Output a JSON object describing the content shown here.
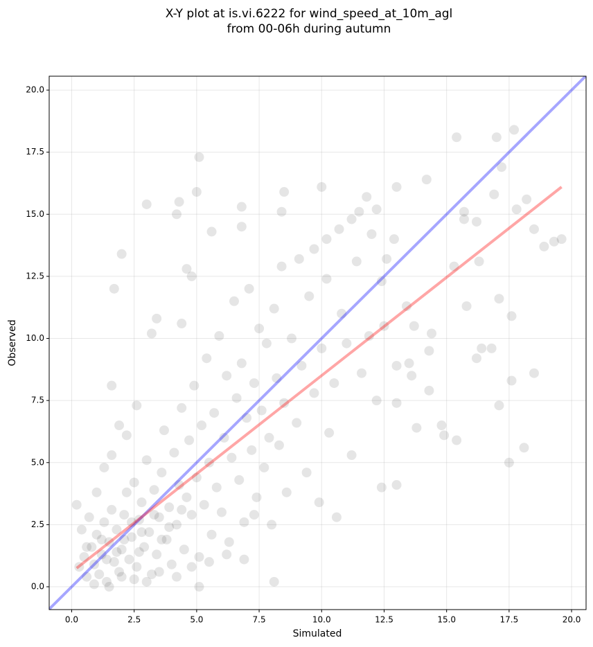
{
  "chart_data": {
    "type": "scatter",
    "title": "X-Y plot at is.vi.6222 for wind_speed_at_10m_agl",
    "subtitle": "from 00-06h during autumn",
    "x_label": "Simulated",
    "y_label": "Observed",
    "xlim": [
      -0.9,
      20.58
    ],
    "ylim": [
      -0.92,
      20.56
    ],
    "xticks": [
      {
        "value": 0,
        "label": "0.0"
      },
      {
        "value": 2.5,
        "label": "2.5"
      },
      {
        "value": 5,
        "label": "5.0"
      },
      {
        "value": 7.5,
        "label": "7.5"
      },
      {
        "value": 10,
        "label": "10.0"
      },
      {
        "value": 12.5,
        "label": "12.5"
      },
      {
        "value": 15,
        "label": "15.0"
      },
      {
        "value": 17.5,
        "label": "17.5"
      },
      {
        "value": 20,
        "label": "20.0"
      }
    ],
    "yticks": [
      {
        "value": 0,
        "label": "0.0"
      },
      {
        "value": 2.5,
        "label": "2.5"
      },
      {
        "value": 5,
        "label": "5.0"
      },
      {
        "value": 7.5,
        "label": "7.5"
      },
      {
        "value": 10,
        "label": "10.0"
      },
      {
        "value": 12.5,
        "label": "12.5"
      },
      {
        "value": 15,
        "label": "15.0"
      },
      {
        "value": 17.5,
        "label": "17.5"
      },
      {
        "value": 20,
        "label": "20.0"
      }
    ],
    "grid": true,
    "points": {
      "color": "#000000",
      "alpha": 0.1,
      "x": [
        0.3,
        0.5,
        0.6,
        0.8,
        0.9,
        1.0,
        1.1,
        1.2,
        1.3,
        1.4,
        1.5,
        1.6,
        1.7,
        1.8,
        1.9,
        2.0,
        2.1,
        2.2,
        2.3,
        2.4,
        2.5,
        2.6,
        2.7,
        2.8,
        2.9,
        3.0,
        3.1,
        3.2,
        3.3,
        3.4,
        3.5,
        3.6,
        3.7,
        3.8,
        3.9,
        4.0,
        4.1,
        4.2,
        4.3,
        4.4,
        4.5,
        4.6,
        4.7,
        4.8,
        4.9,
        5.0,
        5.1,
        5.2,
        5.3,
        5.4,
        5.5,
        5.6,
        5.7,
        5.8,
        5.9,
        6.0,
        6.1,
        6.2,
        6.3,
        6.4,
        6.5,
        6.6,
        6.7,
        6.8,
        6.9,
        7.0,
        7.1,
        7.2,
        7.3,
        7.4,
        7.5,
        7.6,
        7.7,
        7.8,
        7.9,
        8.0,
        8.1,
        8.2,
        8.3,
        8.4,
        8.5,
        8.6,
        8.8,
        9.0,
        9.1,
        9.2,
        9.4,
        9.5,
        9.7,
        9.9,
        10.0,
        10.2,
        10.3,
        10.5,
        10.6,
        10.8,
        11.0,
        11.2,
        11.4,
        11.6,
        11.9,
        12.2,
        12.5,
        0.2,
        0.4,
        0.7,
        1.0,
        1.3,
        1.6,
        1.9,
        2.2,
        2.6,
        0.9,
        1.5,
        2.0,
        2.5,
        3.0,
        3.5,
        4.2,
        4.8,
        5.5,
        6.2,
        6.9,
        7.3,
        1.2,
        1.8,
        2.4,
        2.8,
        3.3,
        3.9,
        4.4,
        0.6,
        1.4,
        2.1,
        2.7,
        3.6,
        2.0,
        1.7,
        3.0,
        5.1,
        4.2,
        4.3,
        5.0,
        15.4,
        17.0,
        17.7,
        17.2,
        14.2,
        13.0,
        10.0,
        8.5,
        18.5,
        17.6,
        18.1,
        17.5,
        17.1,
        15.4,
        14.9,
        14.8,
        13.0,
        12.4,
        8.1,
        5.1,
        19.6,
        19.3,
        18.9,
        18.5,
        18.2,
        17.8,
        16.9,
        16.2,
        15.7,
        15.7,
        16.3,
        15.3,
        15.8,
        17.1,
        17.6,
        16.4,
        16.8,
        16.2,
        14.3,
        13.8,
        13.0,
        14.3,
        14.4,
        13.7,
        13.4,
        13.6,
        13.0,
        13.5,
        12.6,
        12.9,
        12.4,
        12.0,
        11.5,
        11.8,
        12.2,
        11.2,
        10.2,
        10.7,
        9.7,
        8.4,
        6.8,
        6.8,
        5.6,
        4.6,
        4.8,
        4.4,
        3.4,
        3.2,
        1.6
      ],
      "values": [
        0.8,
        1.2,
        0.4,
        1.6,
        0.9,
        2.1,
        0.5,
        1.3,
        2.6,
        0.2,
        1.8,
        3.1,
        1.0,
        2.3,
        0.6,
        1.5,
        2.9,
        3.8,
        1.1,
        2.0,
        4.2,
        0.8,
        2.7,
        3.4,
        1.6,
        5.1,
        2.2,
        0.5,
        3.9,
        1.3,
        2.8,
        4.6,
        6.3,
        1.9,
        3.2,
        0.9,
        5.4,
        2.5,
        4.1,
        7.2,
        1.5,
        3.6,
        5.9,
        2.9,
        8.1,
        4.4,
        1.2,
        6.5,
        3.3,
        9.2,
        5.0,
        2.1,
        7.0,
        4.0,
        10.1,
        3.0,
        6.0,
        8.5,
        1.8,
        5.2,
        11.5,
        7.6,
        4.3,
        9.0,
        2.6,
        6.8,
        12.0,
        5.5,
        8.2,
        3.6,
        10.4,
        7.1,
        4.8,
        9.8,
        6.0,
        2.5,
        11.2,
        8.4,
        5.7,
        12.9,
        7.4,
        3.8,
        10.0,
        6.6,
        13.2,
        8.9,
        4.6,
        11.7,
        7.8,
        3.4,
        9.6,
        12.4,
        6.2,
        8.2,
        2.8,
        11.0,
        9.8,
        5.3,
        13.1,
        8.6,
        10.1,
        7.5,
        10.5,
        3.3,
        2.3,
        2.8,
        3.8,
        4.8,
        5.3,
        6.5,
        6.1,
        7.3,
        0.1,
        0.0,
        0.4,
        0.3,
        0.2,
        0.6,
        0.4,
        0.8,
        1.0,
        1.3,
        1.1,
        2.9,
        1.9,
        1.4,
        2.6,
        2.2,
        2.9,
        2.4,
        3.1,
        1.6,
        1.1,
        1.9,
        1.4,
        1.9,
        13.4,
        12.0,
        15.4,
        17.3,
        15.0,
        15.5,
        15.9,
        18.1,
        18.1,
        18.4,
        16.9,
        16.4,
        16.1,
        16.1,
        15.9,
        8.6,
        8.3,
        5.6,
        5.0,
        7.3,
        5.9,
        6.1,
        6.5,
        4.1,
        4.0,
        0.2,
        0.0,
        14.0,
        13.9,
        13.7,
        14.4,
        15.6,
        15.2,
        15.8,
        14.7,
        14.8,
        15.1,
        13.1,
        12.9,
        11.3,
        11.6,
        10.9,
        9.6,
        9.6,
        9.2,
        7.9,
        6.4,
        7.4,
        9.5,
        10.2,
        10.5,
        11.3,
        8.5,
        8.9,
        9.0,
        13.2,
        14.0,
        12.3,
        14.2,
        15.1,
        15.7,
        15.2,
        14.8,
        14.0,
        14.4,
        13.6,
        15.1,
        15.3,
        14.5,
        14.3,
        12.8,
        12.5,
        10.6,
        10.8,
        10.2,
        8.1
      ]
    },
    "lines": [
      {
        "color": "#0000ff",
        "alpha": 0.35,
        "x": [
          -0.9,
          20.58
        ],
        "values": [
          -0.9,
          20.58
        ]
      },
      {
        "color": "#ff0000",
        "alpha": 0.35,
        "x": [
          0.2,
          19.6
        ],
        "values": [
          0.75,
          16.1
        ]
      }
    ]
  }
}
